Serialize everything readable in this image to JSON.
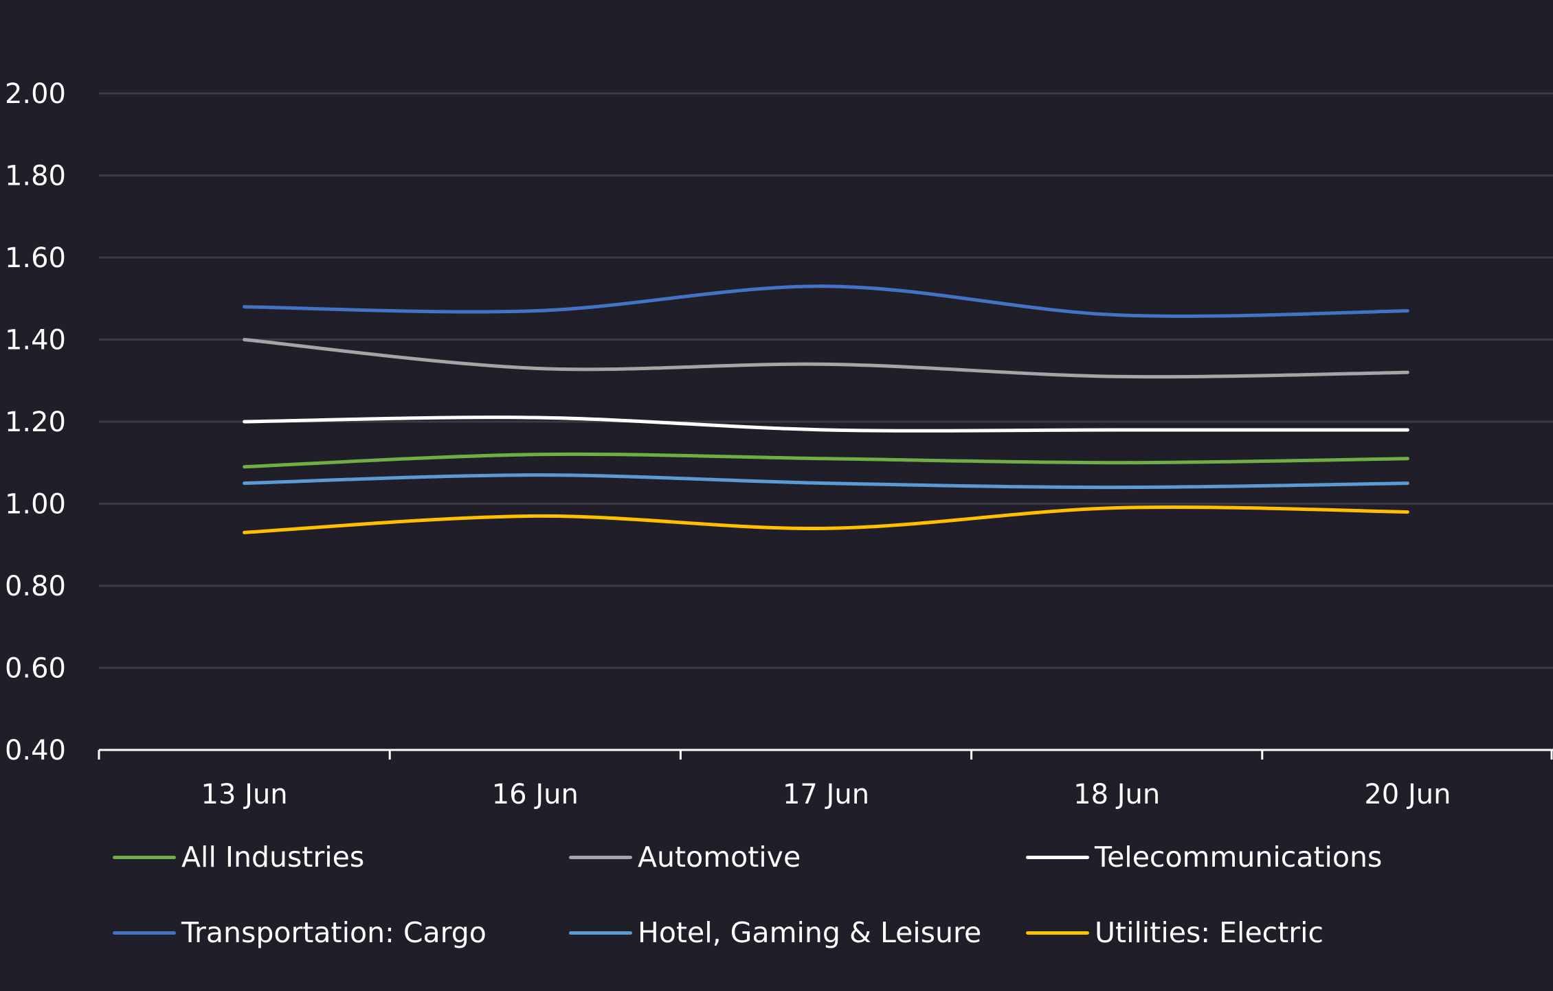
{
  "chart_data": {
    "type": "line",
    "title": "",
    "xlabel": "",
    "ylabel": "",
    "categories": [
      "13 Jun",
      "16 Jun",
      "17 Jun",
      "18 Jun",
      "20 Jun"
    ],
    "ylim": [
      0.4,
      2.0
    ],
    "yticks": [
      "0.40",
      "0.60",
      "0.80",
      "1.00",
      "1.20",
      "1.40",
      "1.60",
      "1.80",
      "2.00"
    ],
    "grid": true,
    "legend_position": "bottom",
    "series": [
      {
        "name": "All Industries",
        "color": "#70ad47",
        "values": [
          1.09,
          1.12,
          1.11,
          1.1,
          1.11
        ]
      },
      {
        "name": "Automotive",
        "color": "#a5a5a5",
        "values": [
          1.4,
          1.33,
          1.34,
          1.31,
          1.32
        ]
      },
      {
        "name": "Telecommunications",
        "color": "#ffffff",
        "values": [
          1.2,
          1.21,
          1.18,
          1.18,
          1.18
        ]
      },
      {
        "name": "Transportation: Cargo",
        "color": "#4472c4",
        "values": [
          1.48,
          1.47,
          1.53,
          1.46,
          1.47
        ]
      },
      {
        "name": "Hotel, Gaming & Leisure",
        "color": "#5b9bd5",
        "values": [
          1.05,
          1.07,
          1.05,
          1.04,
          1.05
        ]
      },
      {
        "name": "Utilities: Electric",
        "color": "#ffc000",
        "values": [
          0.93,
          0.97,
          0.94,
          0.99,
          0.98
        ]
      }
    ]
  },
  "colors": {
    "background": "#1f1e29",
    "gridline": "#3a3944",
    "axis": "#ffffff"
  }
}
